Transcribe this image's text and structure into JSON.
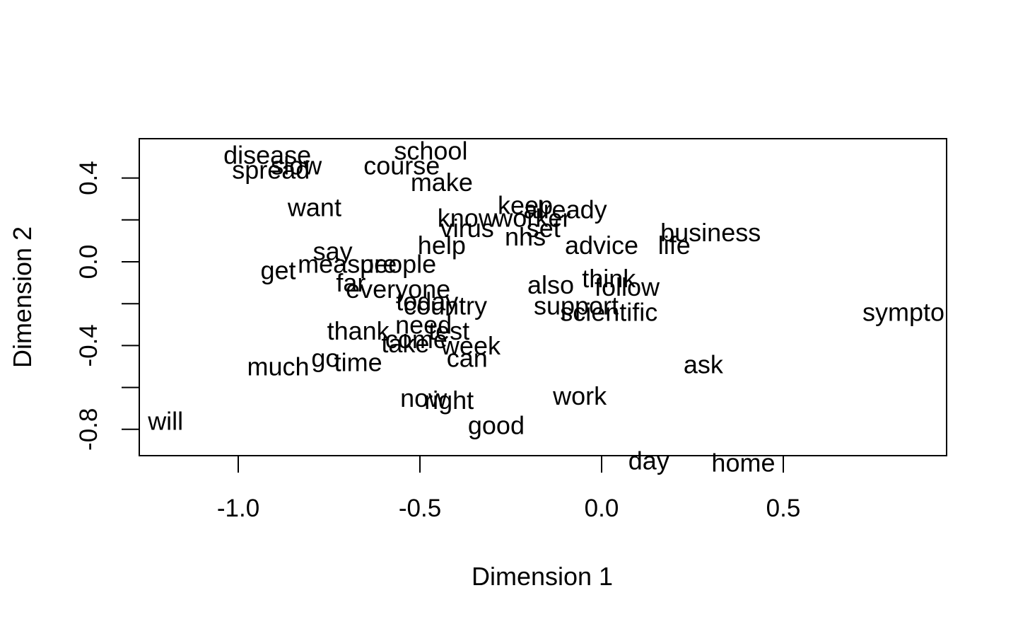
{
  "chart_data": {
    "type": "scatter",
    "marker": "text-label",
    "xlabel": "Dimension 1",
    "ylabel": "Dimension 2",
    "xlim": [
      -1.28,
      0.95
    ],
    "ylim": [
      -0.92,
      0.6
    ],
    "xticks": [
      -1.0,
      -0.5,
      0.0,
      0.5
    ],
    "xtick_labels": [
      "-1.0",
      "-0.5",
      "0.0",
      "0.5"
    ],
    "yticks": [
      -0.8,
      -0.6,
      -0.4,
      -0.2,
      0.0,
      0.2,
      0.4
    ],
    "ytick_labels": [
      "-0.8",
      "",
      "-0.4",
      "",
      "0.0",
      "",
      "0.4"
    ],
    "grid": false,
    "points": [
      {
        "label": "disease",
        "x": -0.92,
        "y": 0.51
      },
      {
        "label": "spread",
        "x": -0.91,
        "y": 0.44
      },
      {
        "label": "slow",
        "x": -0.84,
        "y": 0.46
      },
      {
        "label": "school",
        "x": -0.47,
        "y": 0.53
      },
      {
        "label": "course",
        "x": -0.55,
        "y": 0.46
      },
      {
        "label": "make",
        "x": -0.44,
        "y": 0.38
      },
      {
        "label": "want",
        "x": -0.79,
        "y": 0.26
      },
      {
        "label": "keep",
        "x": -0.21,
        "y": 0.27
      },
      {
        "label": "already",
        "x": -0.1,
        "y": 0.25
      },
      {
        "label": "know",
        "x": -0.37,
        "y": 0.21
      },
      {
        "label": "worker",
        "x": -0.19,
        "y": 0.21
      },
      {
        "label": "virus",
        "x": -0.37,
        "y": 0.16
      },
      {
        "label": "set",
        "x": -0.16,
        "y": 0.16
      },
      {
        "label": "nhs",
        "x": -0.21,
        "y": 0.12
      },
      {
        "label": "business",
        "x": 0.3,
        "y": 0.14
      },
      {
        "label": "life",
        "x": 0.2,
        "y": 0.08
      },
      {
        "label": "advice",
        "x": 0.0,
        "y": 0.08
      },
      {
        "label": "help",
        "x": -0.44,
        "y": 0.08
      },
      {
        "label": "say",
        "x": -0.74,
        "y": 0.05
      },
      {
        "label": "measure",
        "x": -0.7,
        "y": -0.01
      },
      {
        "label": "people",
        "x": -0.56,
        "y": -0.01
      },
      {
        "label": "get",
        "x": -0.89,
        "y": -0.04
      },
      {
        "label": "far",
        "x": -0.69,
        "y": -0.1
      },
      {
        "label": "everyone",
        "x": -0.56,
        "y": -0.13
      },
      {
        "label": "think",
        "x": 0.02,
        "y": -0.08
      },
      {
        "label": "also",
        "x": -0.14,
        "y": -0.11
      },
      {
        "label": "follow",
        "x": 0.07,
        "y": -0.12
      },
      {
        "label": "today",
        "x": -0.48,
        "y": -0.19
      },
      {
        "label": "country",
        "x": -0.43,
        "y": -0.21
      },
      {
        "label": "support",
        "x": -0.07,
        "y": -0.21
      },
      {
        "label": "scientific",
        "x": 0.02,
        "y": -0.24
      },
      {
        "label": "symptom",
        "x": 0.86,
        "y": -0.24
      },
      {
        "label": "thank",
        "x": -0.67,
        "y": -0.33
      },
      {
        "label": "need",
        "x": -0.49,
        "y": -0.3
      },
      {
        "label": "test",
        "x": -0.42,
        "y": -0.33
      },
      {
        "label": "come",
        "x": -0.51,
        "y": -0.37
      },
      {
        "label": "take",
        "x": -0.54,
        "y": -0.39
      },
      {
        "label": "week",
        "x": -0.36,
        "y": -0.4
      },
      {
        "label": "can",
        "x": -0.37,
        "y": -0.46
      },
      {
        "label": "go",
        "x": -0.76,
        "y": -0.46
      },
      {
        "label": "time",
        "x": -0.67,
        "y": -0.48
      },
      {
        "label": "much",
        "x": -0.89,
        "y": -0.5
      },
      {
        "label": "ask",
        "x": 0.28,
        "y": -0.49
      },
      {
        "label": "now",
        "x": -0.49,
        "y": -0.65
      },
      {
        "label": "right",
        "x": -0.42,
        "y": -0.66
      },
      {
        "label": "work",
        "x": -0.06,
        "y": -0.64
      },
      {
        "label": "will",
        "x": -1.2,
        "y": -0.76
      },
      {
        "label": "good",
        "x": -0.29,
        "y": -0.78
      },
      {
        "label": "day",
        "x": 0.13,
        "y": -0.95
      },
      {
        "label": "home",
        "x": 0.39,
        "y": -0.96
      }
    ]
  }
}
